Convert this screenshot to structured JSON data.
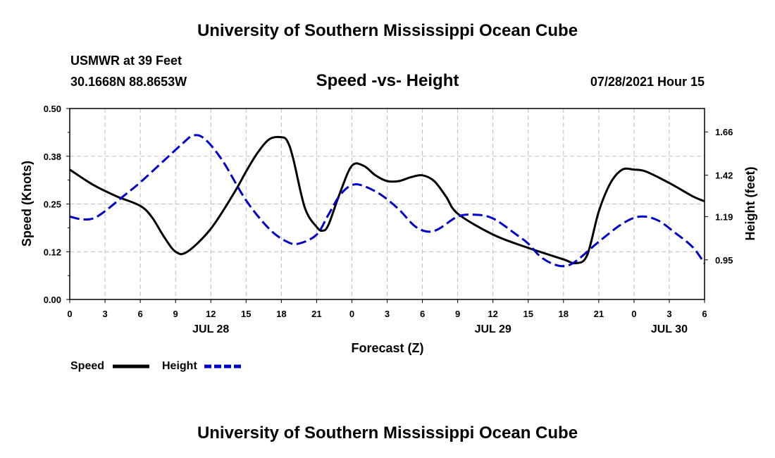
{
  "header": {
    "title": "University of Southern Mississippi Ocean Cube",
    "station": "USMWR at 39 Feet",
    "coords": "30.1668N  88.8653W",
    "subtitle": "Speed -vs- Height",
    "datetime": "07/28/2021 Hour 15"
  },
  "footer": {
    "title": "University of Southern Mississippi Ocean Cube"
  },
  "chart_data": {
    "type": "line",
    "xlabel": "Forecast (Z)",
    "ylabel_left": "Speed (Knots)",
    "ylabel_right": "Height (feet)",
    "x_range": [
      0,
      54
    ],
    "x_ticks": [
      0,
      3,
      6,
      9,
      12,
      15,
      18,
      21,
      24,
      27,
      30,
      33,
      36,
      39,
      42,
      45,
      48,
      51,
      54
    ],
    "x_tick_labels": [
      "0",
      "3",
      "6",
      "9",
      "12",
      "15",
      "18",
      "21",
      "0",
      "3",
      "6",
      "9",
      "12",
      "15",
      "18",
      "21",
      "0",
      "3",
      "6"
    ],
    "day_labels": [
      {
        "label": "JUL 28",
        "x": 12
      },
      {
        "label": "JUL 29",
        "x": 36
      },
      {
        "label": "JUL 30",
        "x": 51
      }
    ],
    "ylim_left": [
      0,
      0.5
    ],
    "y_ticks_left": [
      0,
      0.125,
      0.25,
      0.375,
      0.5
    ],
    "y_tick_labels_left": [
      "0.00",
      "0.12",
      "0.25",
      "0.38",
      "0.50"
    ],
    "ylim_right": [
      0.73,
      1.79
    ],
    "y_ticks_right": [
      0.95,
      1.19,
      1.42,
      1.66
    ],
    "y_tick_labels_right": [
      "0.95",
      "1.19",
      "1.42",
      "1.66"
    ],
    "grid": true,
    "series": [
      {
        "name": "Speed",
        "axis": "left",
        "color": "#000000",
        "dash": "solid",
        "x": [
          0,
          2,
          4,
          6,
          7,
          8,
          9,
          10,
          12,
          14,
          15,
          16,
          17,
          18,
          18.5,
          19,
          20,
          21,
          21.5,
          22,
          23,
          24,
          25,
          26,
          27,
          28,
          29,
          30,
          31,
          32,
          33,
          36,
          39,
          42,
          43,
          44,
          45,
          46,
          47,
          48,
          49,
          51,
          53,
          54
        ],
        "y": [
          0.34,
          0.3,
          0.27,
          0.245,
          0.215,
          0.165,
          0.125,
          0.125,
          0.185,
          0.28,
          0.335,
          0.385,
          0.42,
          0.425,
          0.415,
          0.37,
          0.24,
          0.19,
          0.18,
          0.195,
          0.28,
          0.35,
          0.35,
          0.325,
          0.31,
          0.31,
          0.32,
          0.325,
          0.31,
          0.27,
          0.225,
          0.17,
          0.135,
          0.105,
          0.095,
          0.115,
          0.23,
          0.305,
          0.34,
          0.34,
          0.335,
          0.305,
          0.27,
          0.257
        ]
      },
      {
        "name": "Height",
        "axis": "right",
        "color": "#0000cc",
        "dash": "dashed",
        "x": [
          0,
          1,
          2,
          3,
          4.5,
          6,
          8,
          9.5,
          10.5,
          11.5,
          13,
          15,
          17,
          18.5,
          19.5,
          21,
          22,
          23,
          24,
          25,
          26.5,
          28,
          29.5,
          31,
          33,
          34.5,
          36,
          38,
          39,
          40,
          41,
          42,
          43,
          45,
          47,
          48.5,
          50,
          51.5,
          53,
          54
        ],
        "y": [
          1.19,
          1.175,
          1.18,
          1.22,
          1.3,
          1.38,
          1.5,
          1.59,
          1.64,
          1.62,
          1.5,
          1.28,
          1.12,
          1.05,
          1.04,
          1.09,
          1.2,
          1.31,
          1.365,
          1.36,
          1.31,
          1.23,
          1.13,
          1.11,
          1.19,
          1.2,
          1.18,
          1.09,
          1.04,
          0.97,
          0.93,
          0.915,
          0.94,
          1.05,
          1.15,
          1.19,
          1.17,
          1.1,
          1.02,
          0.93
        ]
      }
    ],
    "legend": {
      "position": "bottom-left",
      "entries": [
        "Speed",
        "Height"
      ]
    }
  }
}
